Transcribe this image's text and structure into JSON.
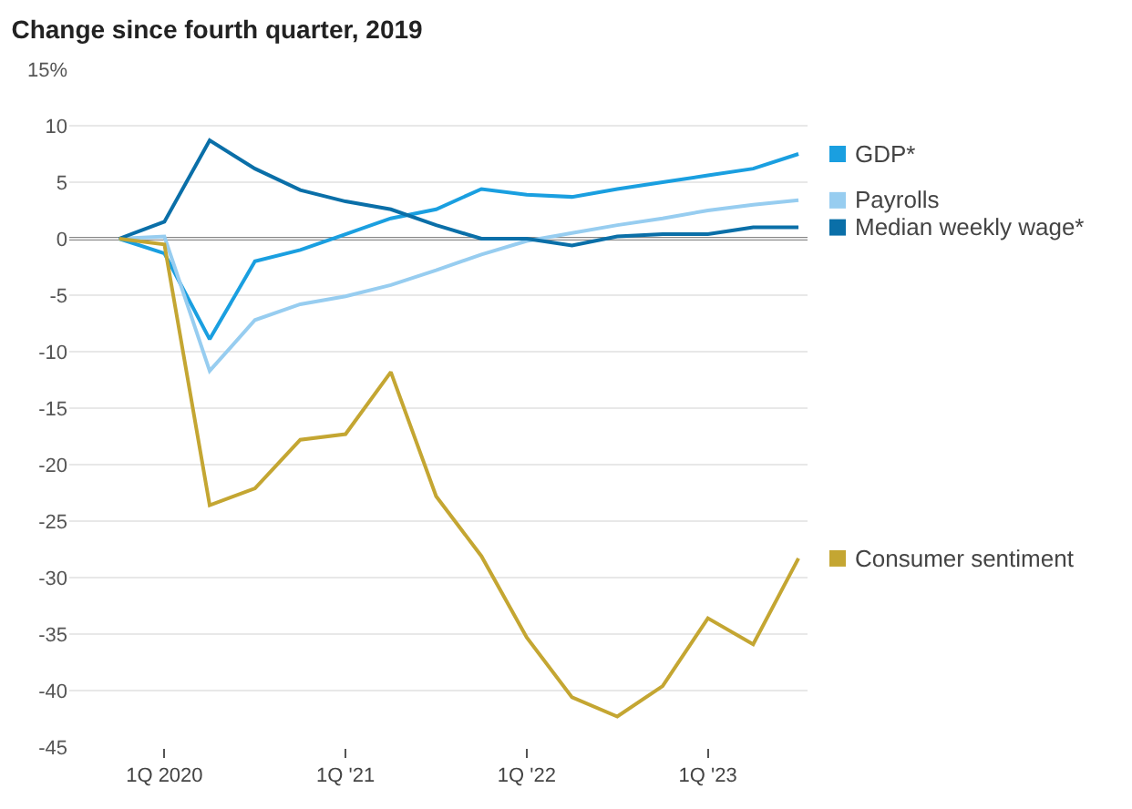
{
  "chart_data": {
    "type": "line",
    "title": "Change since fourth quarter, 2019",
    "categories": [
      null,
      "1Q 2020",
      null,
      null,
      null,
      "1Q '21",
      null,
      null,
      null,
      "1Q '22",
      null,
      null,
      null,
      "1Q '23",
      null,
      null
    ],
    "ylim": [
      -45,
      15
    ],
    "yticks": [
      {
        "value": 15,
        "label": "15%"
      },
      10,
      5,
      0,
      -5,
      -10,
      -15,
      -20,
      -25,
      -30,
      -35,
      -40,
      -45
    ],
    "grid": "y",
    "ref_lines": [
      {
        "axis": "y",
        "value": 0,
        "color": "#888888"
      }
    ],
    "series": [
      {
        "name": "GDP*",
        "color": "#1a9fe0",
        "values": [
          0,
          -1.3,
          -8.9,
          -2.0,
          -1.0,
          0.4,
          1.8,
          2.6,
          4.4,
          3.9,
          3.7,
          4.4,
          5.0,
          5.6,
          6.2,
          7.5
        ]
      },
      {
        "name": "Payrolls",
        "color": "#97cdf0",
        "values": [
          0,
          0.2,
          -11.7,
          -7.2,
          -5.8,
          -5.1,
          -4.1,
          -2.8,
          -1.4,
          -0.2,
          0.5,
          1.2,
          1.8,
          2.5,
          3.0,
          3.4
        ]
      },
      {
        "name": "Median weekly wage*",
        "color": "#0a6fa8",
        "values": [
          0,
          1.5,
          8.7,
          6.2,
          4.3,
          3.3,
          2.6,
          1.2,
          0,
          0,
          -0.6,
          0.2,
          0.4,
          0.4,
          1.0,
          1.0
        ]
      },
      {
        "name": "Consumer sentiment",
        "color": "#c4a632",
        "values": [
          0,
          -0.5,
          -23.6,
          -22.1,
          -17.8,
          -17.3,
          -11.8,
          -22.8,
          -28.1,
          -35.3,
          -40.6,
          -42.3,
          -39.6,
          -33.6,
          -35.9,
          -28.3
        ]
      }
    ],
    "legend": "right",
    "marker": "none",
    "line_style": "solid"
  }
}
